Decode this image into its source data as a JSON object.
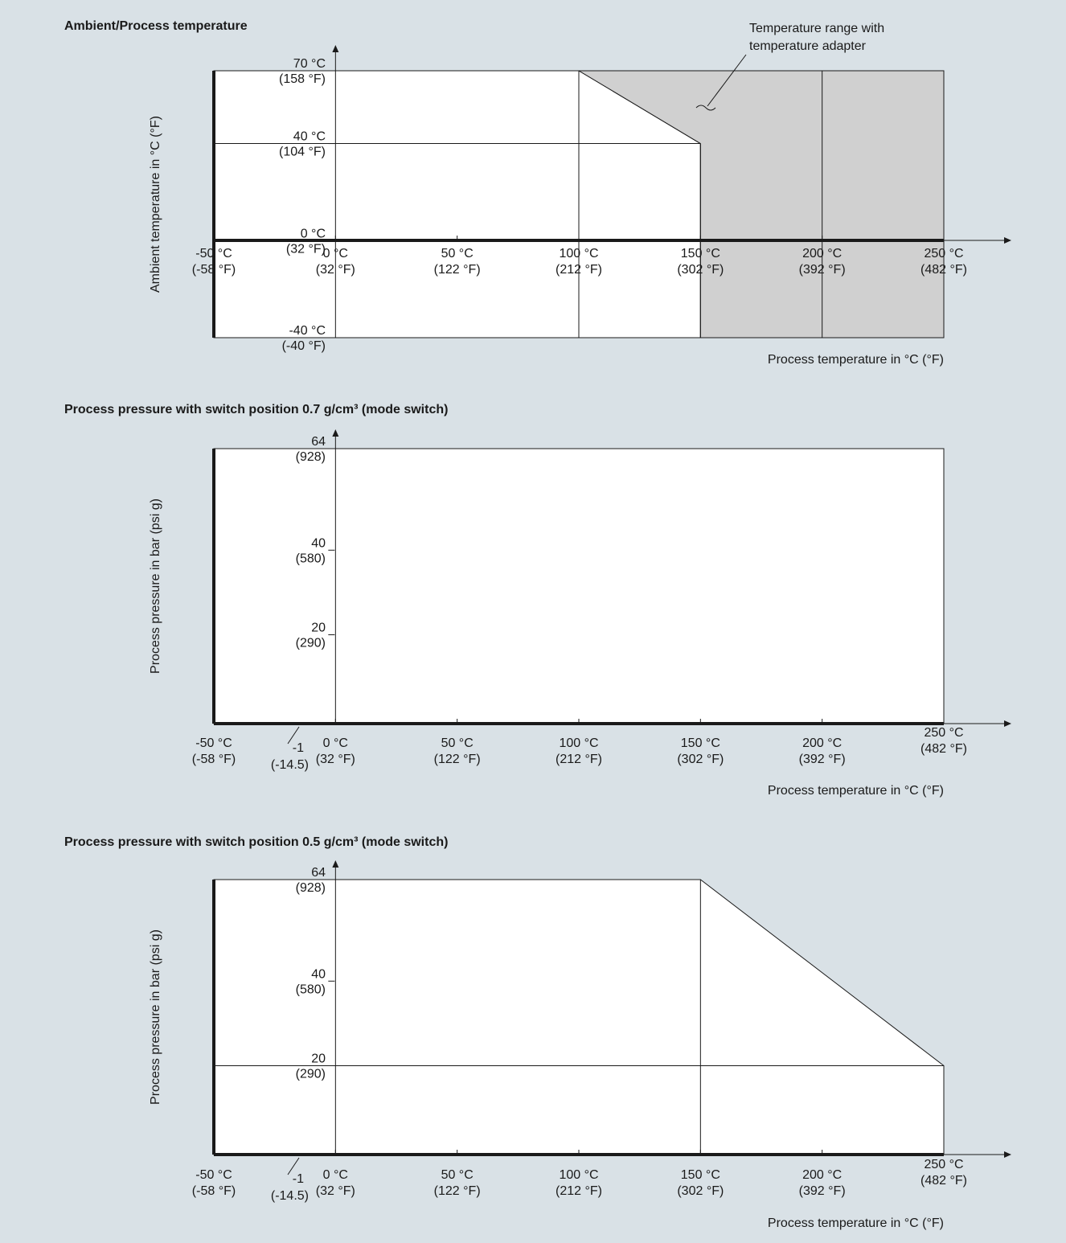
{
  "chart_data": [
    {
      "type": "area",
      "title": "Ambient/Process temperature",
      "ylabel": "Ambient temperature in °C (°F)",
      "xlabel": "Process temperature in °C (°F)",
      "x_ticks": [
        {
          "value": -50,
          "c": "-50 °C",
          "f": "(-58 °F)"
        },
        {
          "value": 0,
          "c": "0 °C",
          "f": "(32 °F)"
        },
        {
          "value": 50,
          "c": "50 °C",
          "f": "(122 °F)"
        },
        {
          "value": 100,
          "c": "100 °C",
          "f": "(212 °F)"
        },
        {
          "value": 150,
          "c": "150 °C",
          "f": "(302 °F)"
        },
        {
          "value": 200,
          "c": "200 °C",
          "f": "(392 °F)"
        },
        {
          "value": 250,
          "c": "250 °C",
          "f": "(482 °F)"
        }
      ],
      "y_ticks": [
        {
          "value": 70,
          "c": "70 °C",
          "f": "(158 °F)"
        },
        {
          "value": 40,
          "c": "40 °C",
          "f": "(104 °F)"
        },
        {
          "value": 0,
          "c": "0 °C",
          "f": "(32 °F)"
        },
        {
          "value": -40,
          "c": "-40 °C",
          "f": "(-40 °F)"
        }
      ],
      "xlim": [
        -50,
        250
      ],
      "ylim": [
        -40,
        70
      ],
      "series": [
        {
          "points": [
            [
              -50,
              -40
            ],
            [
              150,
              -40
            ],
            [
              150,
              40
            ],
            [
              100,
              70
            ],
            [
              -50,
              70
            ],
            [
              -50,
              -40
            ]
          ],
          "color": "#ffffff"
        },
        {
          "name": "Temperature range with temperature adapter",
          "points": [
            [
              150,
              -40
            ],
            [
              250,
              -40
            ],
            [
              250,
              70
            ],
            [
              100,
              70
            ],
            [
              150,
              40
            ],
            [
              150,
              -40
            ]
          ],
          "color": "#d0d0d0"
        }
      ],
      "annotation": "Temperature range with temperature adapter",
      "gridlines_x": [
        0,
        100,
        150,
        200
      ],
      "gridlines_y": [
        40
      ]
    },
    {
      "type": "area",
      "title": "Process pressure with switch position 0.7 g/cm³ (mode switch)",
      "ylabel": "Process pressure in bar (psi g)",
      "xlabel": "Process temperature in °C (°F)",
      "x_ticks": [
        {
          "value": -50,
          "c": "-50 °C",
          "f": "(-58 °F)"
        },
        {
          "value": 0,
          "c": "0 °C",
          "f": "(32 °F)"
        },
        {
          "value": 50,
          "c": "50 °C",
          "f": "(122 °F)"
        },
        {
          "value": 100,
          "c": "100 °C",
          "f": "(212 °F)"
        },
        {
          "value": 150,
          "c": "150 °C",
          "f": "(302 °F)"
        },
        {
          "value": 200,
          "c": "200 °C",
          "f": "(392 °F)"
        },
        {
          "value": 250,
          "c": "250 °C",
          "f": "(482 °F)"
        }
      ],
      "y_ticks": [
        {
          "value": 64,
          "c": "64",
          "f": "(928)"
        },
        {
          "value": 40,
          "c": "40",
          "f": "(580)"
        },
        {
          "value": 20,
          "c": "20",
          "f": "(290)"
        }
      ],
      "y_min_label": {
        "value": -1,
        "c": "-1",
        "f": "(-14.5)"
      },
      "xlim": [
        -50,
        250
      ],
      "ylim": [
        -1,
        64
      ],
      "series": [
        {
          "points": [
            [
              -50,
              -1
            ],
            [
              250,
              -1
            ],
            [
              250,
              64
            ],
            [
              -50,
              64
            ],
            [
              -50,
              -1
            ]
          ],
          "color": "#ffffff"
        }
      ],
      "gridlines_x": [
        0
      ],
      "gridlines_y": []
    },
    {
      "type": "area",
      "title": "Process pressure with switch position 0.5 g/cm³ (mode switch)",
      "ylabel": "Process pressure in bar (psi g)",
      "xlabel": "Process temperature in °C (°F)",
      "x_ticks": [
        {
          "value": -50,
          "c": "-50 °C",
          "f": "(-58 °F)"
        },
        {
          "value": 0,
          "c": "0 °C",
          "f": "(32 °F)"
        },
        {
          "value": 50,
          "c": "50 °C",
          "f": "(122 °F)"
        },
        {
          "value": 100,
          "c": "100 °C",
          "f": "(212 °F)"
        },
        {
          "value": 150,
          "c": "150 °C",
          "f": "(302 °F)"
        },
        {
          "value": 200,
          "c": "200 °C",
          "f": "(392 °F)"
        },
        {
          "value": 250,
          "c": "250 °C",
          "f": "(482 °F)"
        }
      ],
      "y_ticks": [
        {
          "value": 64,
          "c": "64",
          "f": "(928)"
        },
        {
          "value": 40,
          "c": "40",
          "f": "(580)"
        },
        {
          "value": 20,
          "c": "20",
          "f": "(290)"
        }
      ],
      "y_min_label": {
        "value": -1,
        "c": "-1",
        "f": "(-14.5)"
      },
      "xlim": [
        -50,
        250
      ],
      "ylim": [
        -1,
        64
      ],
      "series": [
        {
          "points": [
            [
              -50,
              -1
            ],
            [
              250,
              -1
            ],
            [
              250,
              20
            ],
            [
              150,
              64
            ],
            [
              -50,
              64
            ],
            [
              -50,
              -1
            ]
          ],
          "color": "#ffffff"
        }
      ],
      "gridlines_x": [
        0,
        150
      ],
      "gridlines_y": [
        20
      ]
    }
  ]
}
